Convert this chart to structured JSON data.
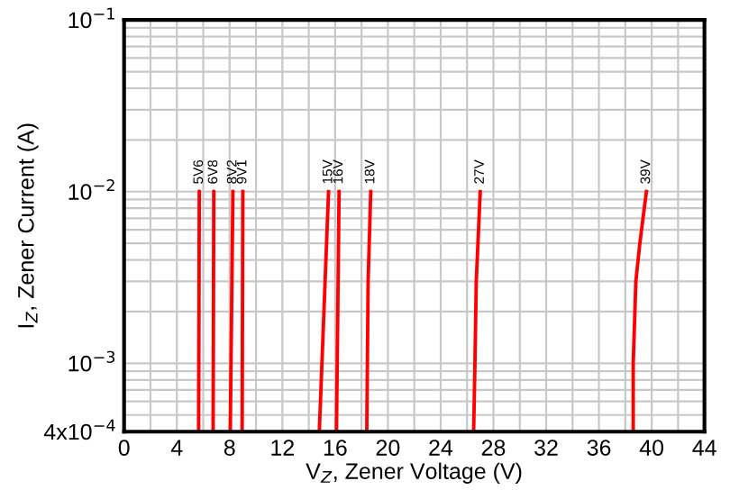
{
  "chart_data": {
    "type": "line",
    "xlabel": "V$_{Z}$, Zener Voltage (V)",
    "ylabel": "I$_{Z}$, Zener Current (A)",
    "log": "y",
    "grid": true,
    "legend": false,
    "marker": "none",
    "line_style": "solid",
    "xlim": [
      0,
      44
    ],
    "ylim": [
      0.0004,
      0.1
    ],
    "xticks": [
      0,
      {
        "value": 2,
        "label": null
      },
      4,
      {
        "value": 6,
        "label": null
      },
      8,
      {
        "value": 10,
        "label": null
      },
      12,
      {
        "value": 14,
        "label": null
      },
      16,
      {
        "value": 18,
        "label": null
      },
      20,
      {
        "value": 22,
        "label": null
      },
      24,
      {
        "value": 26,
        "label": null
      },
      28,
      {
        "value": 30,
        "label": null
      },
      32,
      {
        "value": 34,
        "label": null
      },
      36,
      {
        "value": 38,
        "label": null
      },
      40,
      {
        "value": 42,
        "label": null
      },
      44
    ],
    "yticks": [
      {
        "value": 0.0004,
        "label": "4x10$^{−4}$"
      },
      {
        "value": 0.0005,
        "label": null
      },
      {
        "value": 0.0006,
        "label": null
      },
      {
        "value": 0.0007,
        "label": null
      },
      {
        "value": 0.0008,
        "label": null
      },
      {
        "value": 0.0009,
        "label": null
      },
      {
        "value": 0.001,
        "label": "10$^{−3}$"
      },
      {
        "value": 0.002,
        "label": null
      },
      {
        "value": 0.003,
        "label": null
      },
      {
        "value": 0.004,
        "label": null
      },
      {
        "value": 0.005,
        "label": null
      },
      {
        "value": 0.006,
        "label": null
      },
      {
        "value": 0.007,
        "label": null
      },
      {
        "value": 0.008,
        "label": null
      },
      {
        "value": 0.009,
        "label": null
      },
      {
        "value": 0.01,
        "label": "10$^{−2}$"
      },
      {
        "value": 0.02,
        "label": null
      },
      {
        "value": 0.03,
        "label": null
      },
      {
        "value": 0.04,
        "label": null
      },
      {
        "value": 0.05,
        "label": null
      },
      {
        "value": 0.06,
        "label": null
      },
      {
        "value": 0.07,
        "label": null
      },
      {
        "value": 0.08,
        "label": null
      },
      {
        "value": 0.09,
        "label": null
      },
      {
        "value": 0.1,
        "label": "10$^{−1}$"
      }
    ],
    "series": [
      {
        "name": "5V6",
        "color": "#ff0000",
        "x": [
          5.65,
          5.7
        ],
        "values": [
          0.0004,
          0.01
        ]
      },
      {
        "name": "6V8",
        "color": "#ff0000",
        "x": [
          6.75,
          6.8
        ],
        "values": [
          0.0004,
          0.01
        ]
      },
      {
        "name": "8V2",
        "color": "#ff0000",
        "x": [
          8.05,
          8.25
        ],
        "values": [
          0.0004,
          0.01
        ]
      },
      {
        "name": "9V1",
        "color": "#ff0000",
        "x": [
          8.95,
          9.0
        ],
        "values": [
          0.0004,
          0.01
        ]
      },
      {
        "name": "15V",
        "color": "#ff0000",
        "x": [
          14.8,
          15.0,
          15.5
        ],
        "values": [
          0.0004,
          0.001,
          0.01
        ]
      },
      {
        "name": "16V",
        "color": "#ff0000",
        "x": [
          16.1,
          16.3
        ],
        "values": [
          0.0004,
          0.01
        ]
      },
      {
        "name": "18V",
        "color": "#ff0000",
        "x": [
          18.4,
          18.5,
          18.7
        ],
        "values": [
          0.0004,
          0.003,
          0.01
        ]
      },
      {
        "name": "27V",
        "color": "#ff0000",
        "x": [
          26.5,
          26.6,
          26.7,
          27.0
        ],
        "values": [
          0.0004,
          0.001,
          0.003,
          0.01
        ]
      },
      {
        "name": "39V",
        "color": "#ff0000",
        "x": [
          38.6,
          38.6,
          38.8,
          39.1,
          39.6
        ],
        "values": [
          0.0004,
          0.001,
          0.003,
          0.005,
          0.01
        ]
      }
    ]
  }
}
